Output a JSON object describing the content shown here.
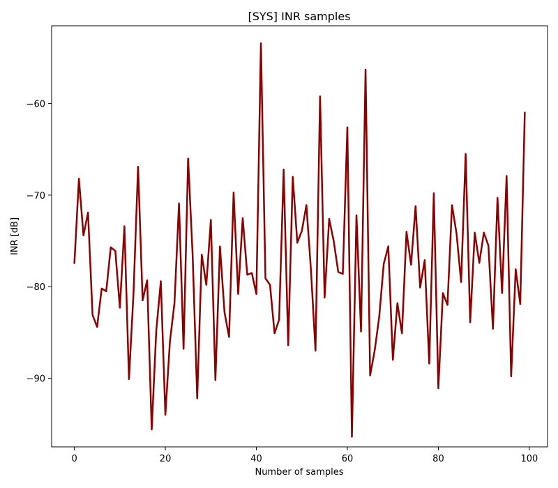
{
  "chart_data": {
    "type": "line",
    "title": "[SYS] INR samples",
    "xlabel": "Number of samples",
    "ylabel": "INR [dB]",
    "xlim": [
      -5,
      104
    ],
    "ylim": [
      -97.5,
      -51.5
    ],
    "xticks": [
      0,
      20,
      40,
      60,
      80,
      100
    ],
    "yticks": [
      -90,
      -80,
      -70,
      -60
    ],
    "grid": false,
    "series": [
      {
        "color": "#8b0000",
        "x": [
          0,
          1,
          2,
          3,
          4,
          5,
          6,
          7,
          8,
          9,
          10,
          11,
          12,
          13,
          14,
          15,
          16,
          17,
          18,
          19,
          20,
          21,
          22,
          23,
          24,
          25,
          26,
          27,
          28,
          29,
          30,
          31,
          32,
          33,
          34,
          35,
          36,
          37,
          38,
          39,
          40,
          41,
          42,
          43,
          44,
          45,
          46,
          47,
          48,
          49,
          50,
          51,
          52,
          53,
          54,
          55,
          56,
          57,
          58,
          59,
          60,
          61,
          62,
          63,
          64,
          65,
          66,
          67,
          68,
          69,
          70,
          71,
          72,
          73,
          74,
          75,
          76,
          77,
          78,
          79,
          80,
          81,
          82,
          83,
          84,
          85,
          86,
          87,
          88,
          89,
          90,
          91,
          92,
          93,
          94,
          95,
          96,
          97,
          98,
          99
        ],
        "y": [
          -77.5,
          -68.2,
          -74.4,
          -71.9,
          -83.1,
          -84.4,
          -80.2,
          -80.5,
          -75.7,
          -76.1,
          -82.3,
          -73.4,
          -90.1,
          -80.7,
          -66.9,
          -81.5,
          -79.3,
          -95.6,
          -84.8,
          -79.4,
          -94.0,
          -86.0,
          -81.8,
          -70.9,
          -86.8,
          -66.0,
          -76.6,
          -92.2,
          -76.5,
          -79.8,
          -72.7,
          -90.2,
          -75.6,
          -82.8,
          -85.5,
          -69.7,
          -80.8,
          -72.5,
          -78.7,
          -78.5,
          -80.8,
          -53.4,
          -79.1,
          -79.8,
          -85.1,
          -83.6,
          -67.2,
          -86.4,
          -68.0,
          -75.2,
          -73.9,
          -71.1,
          -78.2,
          -87.0,
          -59.2,
          -81.2,
          -72.6,
          -75.0,
          -78.4,
          -78.6,
          -62.6,
          -96.4,
          -72.2,
          -84.9,
          -56.3,
          -89.7,
          -87.0,
          -83.3,
          -77.5,
          -75.6,
          -88.0,
          -81.8,
          -85.1,
          -74.0,
          -77.6,
          -71.2,
          -80.1,
          -77.1,
          -88.4,
          -69.8,
          -91.1,
          -80.7,
          -82.0,
          -71.1,
          -74.2,
          -79.5,
          -65.5,
          -83.9,
          -74.1,
          -77.4,
          -74.1,
          -75.5,
          -84.6,
          -70.3,
          -80.7,
          -67.9,
          -89.8,
          -78.1,
          -81.9,
          -60.9
        ]
      }
    ]
  }
}
